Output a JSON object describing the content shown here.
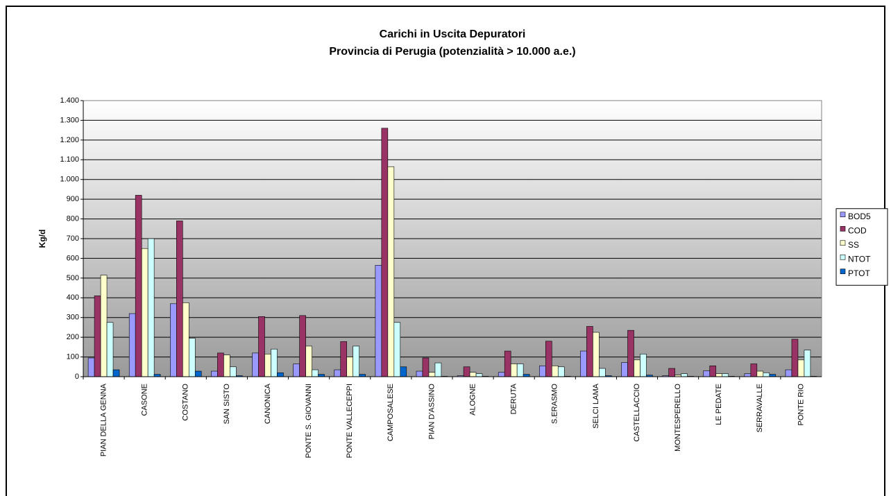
{
  "chart_data": {
    "type": "bar",
    "title": "Carichi in Uscita Depuratori",
    "subtitle": "Provincia di Perugia (potenzialità > 10.000 a.e.)",
    "y_label": "Kg/d",
    "categories": [
      "PIAN DELLA GENNA",
      "CASONE",
      "COSTANO",
      "SAN SISTO",
      "CANONICA",
      "PONTE S. GIOVANNI",
      "PONTE VALLECEPPI",
      "CAMPOSALESE",
      "PIAN D'ASSINO",
      "ALOGNE",
      "DERUTA",
      "S.ERASMO",
      "SELCI LAMA",
      "CASTELLACCIO",
      "MONTESPERELLO",
      "LE PEDATE",
      "SERRAVALLE",
      "PONTE RIO"
    ],
    "series": [
      {
        "name": "BOD5",
        "color": "#9999ff",
        "values": [
          95,
          320,
          370,
          28,
          120,
          65,
          35,
          565,
          28,
          5,
          22,
          55,
          130,
          72,
          5,
          30,
          15,
          35
        ]
      },
      {
        "name": "COD",
        "color": "#993366",
        "values": [
          410,
          920,
          790,
          120,
          305,
          310,
          178,
          1260,
          95,
          50,
          130,
          180,
          255,
          235,
          42,
          55,
          65,
          190
        ]
      },
      {
        "name": "SS",
        "color": "#ffffcc",
        "values": [
          515,
          650,
          375,
          110,
          115,
          155,
          100,
          1065,
          22,
          22,
          65,
          55,
          225,
          85,
          8,
          15,
          28,
          85
        ]
      },
      {
        "name": "NTOT",
        "color": "#ccffff",
        "values": [
          275,
          700,
          195,
          50,
          140,
          35,
          155,
          275,
          70,
          15,
          65,
          50,
          42,
          115,
          15,
          15,
          20,
          135
        ]
      },
      {
        "name": "PTOT",
        "color": "#0066cc",
        "values": [
          35,
          12,
          28,
          5,
          20,
          12,
          12,
          50,
          2,
          2,
          12,
          2,
          5,
          8,
          2,
          2,
          12,
          2
        ]
      }
    ],
    "ylim": [
      0,
      1400
    ],
    "yticks": [
      0,
      100,
      200,
      300,
      400,
      500,
      600,
      700,
      800,
      900,
      {
        "value": 1000,
        "label": "1.000"
      },
      {
        "value": 1100,
        "label": "1.100"
      },
      {
        "value": 1200,
        "label": "1.200"
      },
      {
        "value": 1300,
        "label": "1.300"
      },
      {
        "value": 1400,
        "label": "1.400"
      }
    ],
    "grid": true,
    "legend": "right"
  }
}
